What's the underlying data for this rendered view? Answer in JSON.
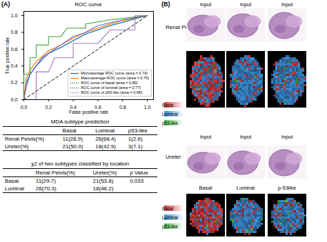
{
  "chart_data": {
    "type": "line",
    "panel_label": "(A)",
    "title": "ROC curve",
    "x_label": "False positive rate",
    "y_label": "True positive rate",
    "xlim": [
      0,
      1.05
    ],
    "ylim": [
      0,
      1.05
    ],
    "xticks": [
      {
        "value": 0,
        "label": "0.0"
      },
      {
        "value": 0.2,
        "label": "0.2"
      },
      {
        "value": 0.4,
        "label": "0.4"
      },
      {
        "value": 0.6,
        "label": "0.6"
      },
      {
        "value": 0.8,
        "label": "0.8"
      },
      {
        "value": 1,
        "label": "1.0"
      }
    ],
    "yticks": [
      {
        "value": 0,
        "label": "0.0"
      },
      {
        "value": 0.2,
        "label": "0.2"
      },
      {
        "value": 0.4,
        "label": "0.4"
      },
      {
        "value": 0.6,
        "label": "0.6"
      },
      {
        "value": 0.8,
        "label": "0.8"
      },
      {
        "value": 1,
        "label": "1.0"
      }
    ],
    "legend": "lower right",
    "series": [
      {
        "name": "Microaverage ROC curve (area = 0.74)",
        "color": "#1f77b4",
        "line_style": "solid",
        "x": [
          0,
          0.02,
          0.05,
          0.1,
          0.15,
          0.2,
          0.3,
          0.4,
          0.5,
          0.6,
          0.7,
          0.8,
          0.9,
          1
        ],
        "values": [
          0,
          0.2,
          0.3,
          0.4,
          0.5,
          0.55,
          0.62,
          0.7,
          0.78,
          0.83,
          0.88,
          0.92,
          0.96,
          1
        ]
      },
      {
        "name": "Macroaverage ROC curve (area = 0.76)",
        "color": "#ff7f0e",
        "line_style": "solid",
        "x": [
          0,
          0.02,
          0.05,
          0.1,
          0.2,
          0.3,
          0.4,
          0.5,
          0.6,
          0.7,
          0.8,
          0.9,
          1
        ],
        "values": [
          0,
          0.25,
          0.35,
          0.45,
          0.58,
          0.65,
          0.73,
          0.8,
          0.85,
          0.9,
          0.94,
          0.97,
          1
        ]
      },
      {
        "name": "ROC curve of basal (area = 0.80)",
        "color": "#2ca02c",
        "line_style": "dotted",
        "x": [
          0,
          0,
          0.05,
          0.05,
          0.1,
          0.1,
          0.2,
          0.2,
          0.3,
          0.35,
          0.5,
          0.5,
          0.7,
          1
        ],
        "values": [
          0,
          0.3,
          0.3,
          0.5,
          0.5,
          0.65,
          0.65,
          0.75,
          0.75,
          0.85,
          0.85,
          0.9,
          0.95,
          1
        ]
      },
      {
        "name": "ROC curve of luminal (area = 0.77)",
        "color": "#5b5bd6",
        "line_style": "dotted",
        "x": [
          0,
          0.02,
          0.05,
          0.1,
          0.2,
          0.3,
          0.4,
          0.5,
          0.6,
          0.8,
          1
        ],
        "values": [
          0,
          0.15,
          0.3,
          0.4,
          0.55,
          0.65,
          0.75,
          0.8,
          0.88,
          0.95,
          1
        ]
      },
      {
        "name": "ROC curve of p53-like (area = 0.68)",
        "color": "#9467bd",
        "line_style": "dotted",
        "x": [
          0,
          0.1,
          0.1,
          0.2,
          0.25,
          0.4,
          0.4,
          0.6,
          0.7,
          0.9,
          0.9,
          1
        ],
        "values": [
          0,
          0,
          0.33,
          0.33,
          0.5,
          0.5,
          0.67,
          0.67,
          0.83,
          0.83,
          1,
          1
        ]
      }
    ],
    "reference_line": {
      "x": [
        0,
        1
      ],
      "values": [
        0,
        1
      ],
      "color": "#000000",
      "line_style": "dashed"
    }
  },
  "tables": [
    {
      "title": "MDA subtype prediction",
      "header": [
        null,
        "Basal",
        "Luminal",
        "p53-like"
      ],
      "rows": [
        [
          "Renal Pelvis(%)",
          "11(28.9)",
          "26(68.4)",
          "1(2.6)"
        ],
        [
          "Ureter(%)",
          "21(50.0)",
          "18(42.9)",
          "3(7.1)"
        ]
      ]
    },
    {
      "title": "χ2 of two subtypes classified by location",
      "header": [
        null,
        "Renal Pelvis(%)",
        "Ureter(%)",
        "p Value"
      ],
      "rows": [
        [
          "Basal",
          "11(29.7)",
          "21(53.8)",
          "0.033"
        ],
        [
          "Luminal",
          "26(70.3)",
          "18(46.2)",
          null
        ]
      ]
    }
  ],
  "panel_b": {
    "panel_label": "(B)",
    "rows": [
      {
        "name": "Renal Pelvis",
        "input_labels": [
          "Input",
          "Input",
          "Input"
        ],
        "column_labels": null,
        "legend": [
          {
            "name": "Basal",
            "color": "#e0393b"
          },
          {
            "name": "Luminal",
            "color": "#3b8fd9"
          },
          {
            "name": "p53-like",
            "color": "#4cc24c"
          }
        ]
      },
      {
        "name": "Ureter",
        "input_labels": [
          "Input",
          "Input",
          "Input"
        ],
        "column_labels": [
          "Basal",
          "Luminal",
          "p-53like"
        ],
        "legend": [
          {
            "name": "Basal",
            "color": "#e0393b"
          },
          {
            "name": "Luminal",
            "color": "#3b8fd9"
          },
          {
            "name": "p53-like",
            "color": "#4cc24c"
          }
        ]
      }
    ]
  }
}
